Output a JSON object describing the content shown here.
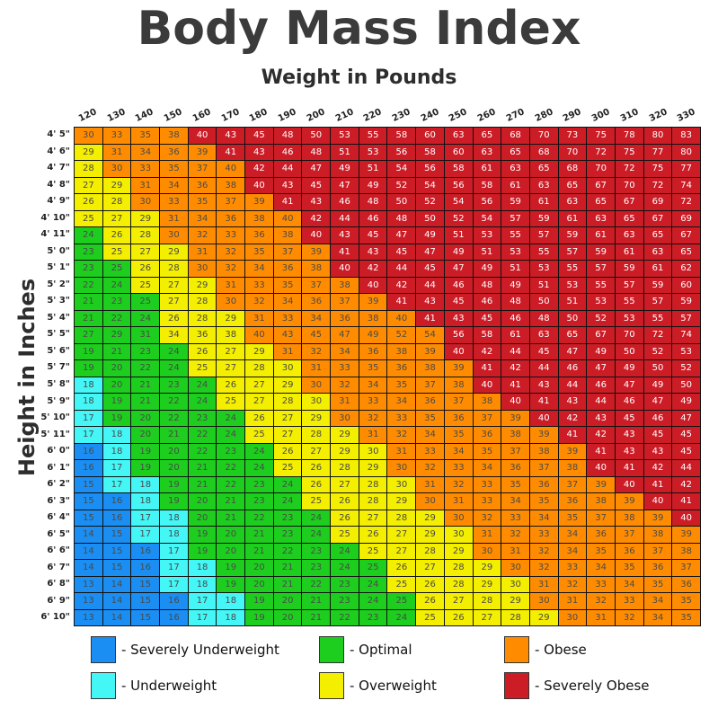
{
  "chart_data": {
    "type": "heatmap",
    "title": "Body Mass Index",
    "xlabel": "Weight in Pounds",
    "ylabel": "Height in Inches",
    "columns": [
      "120",
      "130",
      "140",
      "150",
      "160",
      "170",
      "180",
      "190",
      "200",
      "210",
      "220",
      "230",
      "240",
      "250",
      "260",
      "270",
      "280",
      "290",
      "300",
      "310",
      "320",
      "330"
    ],
    "rows": [
      {
        "label": "4' 5\"",
        "values": [
          30,
          33,
          35,
          38,
          40,
          43,
          45,
          48,
          50,
          53,
          55,
          58,
          60,
          63,
          65,
          68,
          70,
          73,
          75,
          78,
          80,
          83
        ],
        "categories": "OOOORRRRRRRRRRRRRRRRRR"
      },
      {
        "label": "4' 6\"",
        "values": [
          29,
          31,
          34,
          36,
          39,
          41,
          43,
          46,
          48,
          51,
          53,
          56,
          58,
          60,
          63,
          65,
          68,
          70,
          72,
          75,
          77,
          80
        ],
        "categories": "YOOOORRRRRRRRRRRRRRRRR"
      },
      {
        "label": "4' 7\"",
        "values": [
          28,
          30,
          33,
          35,
          37,
          40,
          42,
          44,
          47,
          49,
          51,
          54,
          56,
          58,
          61,
          63,
          65,
          68,
          70,
          72,
          75,
          77
        ],
        "categories": "YOOOOORRRRRRRRRRRRRRRR"
      },
      {
        "label": "4' 8\"",
        "values": [
          27,
          29,
          31,
          34,
          36,
          38,
          40,
          43,
          45,
          47,
          49,
          52,
          54,
          56,
          58,
          61,
          63,
          65,
          67,
          70,
          72,
          74
        ],
        "categories": "YYOOOORRRRRRRRRRRRRRRR"
      },
      {
        "label": "4' 9\"",
        "values": [
          26,
          28,
          30,
          33,
          35,
          37,
          39,
          41,
          43,
          46,
          48,
          50,
          52,
          54,
          56,
          59,
          61,
          63,
          65,
          67,
          69,
          72
        ],
        "categories": "YYOOOOORRRRRRRRRRRRRRR"
      },
      {
        "label": "4' 10\"",
        "values": [
          25,
          27,
          29,
          31,
          34,
          36,
          38,
          40,
          42,
          44,
          46,
          48,
          50,
          52,
          54,
          57,
          59,
          61,
          63,
          65,
          67,
          69
        ],
        "categories": "YYYOOOOORRRRRRRRRRRRRR"
      },
      {
        "label": "4' 11\"",
        "values": [
          24,
          26,
          28,
          30,
          32,
          33,
          36,
          38,
          40,
          43,
          45,
          47,
          49,
          51,
          53,
          55,
          57,
          59,
          61,
          63,
          65,
          67
        ],
        "categories": "GYYOOOOORRRRRRRRRRRRRR"
      },
      {
        "label": "5' 0\"",
        "values": [
          23,
          25,
          27,
          29,
          31,
          32,
          35,
          37,
          39,
          41,
          43,
          45,
          47,
          49,
          51,
          53,
          55,
          57,
          59,
          61,
          63,
          65
        ],
        "categories": "GYYYOOOOORRRRRRRRRRRRR"
      },
      {
        "label": "5' 1\"",
        "values": [
          23,
          25,
          26,
          28,
          30,
          32,
          34,
          36,
          38,
          40,
          42,
          44,
          45,
          47,
          49,
          51,
          53,
          55,
          57,
          59,
          61,
          62
        ],
        "categories": "GGYYOOOOORRRRRRRRRRRRR"
      },
      {
        "label": "5' 2\"",
        "values": [
          22,
          24,
          25,
          27,
          29,
          31,
          33,
          35,
          37,
          38,
          40,
          42,
          44,
          46,
          48,
          49,
          51,
          53,
          55,
          57,
          59,
          60
        ],
        "categories": "GGYYYOOOOORRRRRRRRRRRR"
      },
      {
        "label": "5' 3\"",
        "values": [
          21,
          23,
          25,
          27,
          28,
          30,
          32,
          34,
          36,
          37,
          39,
          41,
          43,
          45,
          46,
          48,
          50,
          51,
          53,
          55,
          57,
          59
        ],
        "categories": "GGGYYOOOOOORRRRRRRRRRR"
      },
      {
        "label": "5' 4\"",
        "values": [
          21,
          22,
          24,
          26,
          28,
          29,
          31,
          33,
          34,
          36,
          38,
          40,
          41,
          43,
          45,
          46,
          48,
          50,
          52,
          53,
          55,
          57
        ],
        "categories": "GGGYYYOOOOOORRRRRRRRRR"
      },
      {
        "label": "5' 5\"",
        "values": [
          27,
          29,
          31,
          34,
          36,
          38,
          40,
          43,
          45,
          47,
          49,
          52,
          54,
          56,
          58,
          61,
          63,
          65,
          67,
          70,
          72,
          74
        ],
        "categories": "GGGYYYOOOOOOORRRRRRRRR"
      },
      {
        "label": "5' 6\"",
        "values": [
          19,
          21,
          23,
          24,
          26,
          27,
          29,
          31,
          32,
          34,
          36,
          38,
          39,
          40,
          42,
          44,
          45,
          47,
          49,
          50,
          52,
          53
        ],
        "categories": "GGGGYYYOOOOOORRRRRRRRR"
      },
      {
        "label": "5' 7\"",
        "values": [
          19,
          20,
          22,
          24,
          25,
          27,
          28,
          30,
          31,
          33,
          35,
          36,
          38,
          39,
          41,
          42,
          44,
          46,
          47,
          49,
          50,
          52
        ],
        "categories": "GGGGYYYYOOOOOORRRRRRRR"
      },
      {
        "label": "5' 8\"",
        "values": [
          18,
          20,
          21,
          23,
          24,
          26,
          27,
          29,
          30,
          32,
          34,
          35,
          37,
          38,
          40,
          41,
          43,
          44,
          46,
          47,
          49,
          50
        ],
        "categories": "CGGGGYYYOOOOOORRRRRRRR"
      },
      {
        "label": "5' 9\"",
        "values": [
          18,
          19,
          21,
          22,
          24,
          25,
          27,
          28,
          30,
          31,
          33,
          34,
          36,
          37,
          38,
          40,
          41,
          43,
          44,
          46,
          47,
          49
        ],
        "categories": "CGGGGYYYYOOOOOORRRRRRR"
      },
      {
        "label": "5' 10\"",
        "values": [
          17,
          19,
          20,
          22,
          23,
          24,
          26,
          27,
          29,
          30,
          32,
          33,
          35,
          36,
          37,
          39,
          40,
          42,
          43,
          45,
          46,
          47
        ],
        "categories": "CGGGGGYYYOOOOOOORRRRRR"
      },
      {
        "label": "5' 11\"",
        "values": [
          17,
          18,
          20,
          21,
          22,
          24,
          25,
          27,
          28,
          29,
          31,
          32,
          34,
          35,
          36,
          38,
          39,
          41,
          42,
          43,
          45,
          45
        ],
        "categories": "CCGGGGYYYYOOOOOOORRRRR"
      },
      {
        "label": "6' 0\"",
        "values": [
          16,
          18,
          19,
          20,
          22,
          23,
          24,
          26,
          27,
          29,
          30,
          31,
          33,
          34,
          35,
          37,
          38,
          39,
          41,
          43,
          43,
          45
        ],
        "categories": "BCGGGGGYYYYOOOOOOORRRR"
      },
      {
        "label": "6' 1\"",
        "values": [
          16,
          17,
          19,
          20,
          21,
          22,
          24,
          25,
          26,
          28,
          29,
          30,
          32,
          33,
          34,
          36,
          37,
          38,
          40,
          41,
          42,
          44
        ],
        "categories": "BCGGGGGYYYYOOOOOOORRRR"
      },
      {
        "label": "6' 2\"",
        "values": [
          15,
          17,
          18,
          19,
          21,
          22,
          23,
          24,
          26,
          27,
          28,
          30,
          31,
          32,
          33,
          35,
          36,
          37,
          39,
          40,
          41,
          42
        ],
        "categories": "BCCGGGGGYYYYOOOOOOORRR"
      },
      {
        "label": "6' 3\"",
        "values": [
          15,
          16,
          18,
          19,
          20,
          21,
          23,
          24,
          25,
          26,
          28,
          29,
          30,
          31,
          33,
          34,
          35,
          36,
          38,
          39,
          40,
          41
        ],
        "categories": "BBCGGGGGYYYYOOOOOOOORR"
      },
      {
        "label": "6' 4\"",
        "values": [
          15,
          16,
          17,
          18,
          20,
          21,
          22,
          23,
          24,
          26,
          27,
          28,
          29,
          30,
          32,
          33,
          34,
          35,
          37,
          38,
          39,
          40
        ],
        "categories": "BBCCGGGGGYYYYOOOOOOOOR"
      },
      {
        "label": "6' 5\"",
        "values": [
          14,
          15,
          17,
          18,
          19,
          20,
          21,
          23,
          24,
          25,
          26,
          27,
          29,
          30,
          31,
          32,
          33,
          34,
          36,
          37,
          38,
          39
        ],
        "categories": "BBCCGGGGGYYYYYOOOOOOOO"
      },
      {
        "label": "6' 6\"",
        "values": [
          14,
          15,
          16,
          17,
          19,
          20,
          21,
          22,
          23,
          24,
          25,
          27,
          28,
          29,
          30,
          31,
          32,
          34,
          35,
          36,
          37,
          38
        ],
        "categories": "BBBCGGGGGGYYYYOOOOOOOO"
      },
      {
        "label": "6' 7\"",
        "values": [
          14,
          15,
          16,
          17,
          18,
          19,
          20,
          21,
          23,
          24,
          25,
          26,
          27,
          28,
          29,
          30,
          32,
          33,
          34,
          35,
          36,
          37
        ],
        "categories": "BBBCCGGGGGGYYYYOOOOOOO"
      },
      {
        "label": "6' 8\"",
        "values": [
          13,
          14,
          15,
          17,
          18,
          19,
          20,
          21,
          22,
          23,
          24,
          25,
          26,
          28,
          29,
          30,
          31,
          32,
          33,
          34,
          35,
          36
        ],
        "categories": "BBBCCGGGGGGYYYYYOOOOOO"
      },
      {
        "label": "6' 9\"",
        "values": [
          13,
          14,
          15,
          16,
          17,
          18,
          19,
          20,
          21,
          23,
          24,
          25,
          26,
          27,
          28,
          29,
          30,
          31,
          32,
          33,
          34,
          35
        ],
        "categories": "BBBBCCGGGGGGYYYYOOOOOO"
      },
      {
        "label": "6' 10\"",
        "values": [
          13,
          14,
          15,
          16,
          17,
          18,
          19,
          20,
          21,
          22,
          23,
          24,
          25,
          26,
          27,
          28,
          29,
          30,
          31,
          32,
          34,
          35
        ],
        "categories": "BBBBCCGGGGGGYYYYYOOOOO"
      }
    ],
    "legend": [
      {
        "code": "B",
        "label": "- Severely Underweight",
        "color": "#1a8ef2"
      },
      {
        "code": "C",
        "label": "- Underweight",
        "color": "#44f6f6"
      },
      {
        "code": "G",
        "label": "- Optimal",
        "color": "#1ece1e"
      },
      {
        "code": "Y",
        "label": "- Overweight",
        "color": "#f4ee00"
      },
      {
        "code": "O",
        "label": "- Obese",
        "color": "#ff8c00"
      },
      {
        "code": "R",
        "label": "- Severely Obese",
        "color": "#cc1c26"
      }
    ]
  }
}
